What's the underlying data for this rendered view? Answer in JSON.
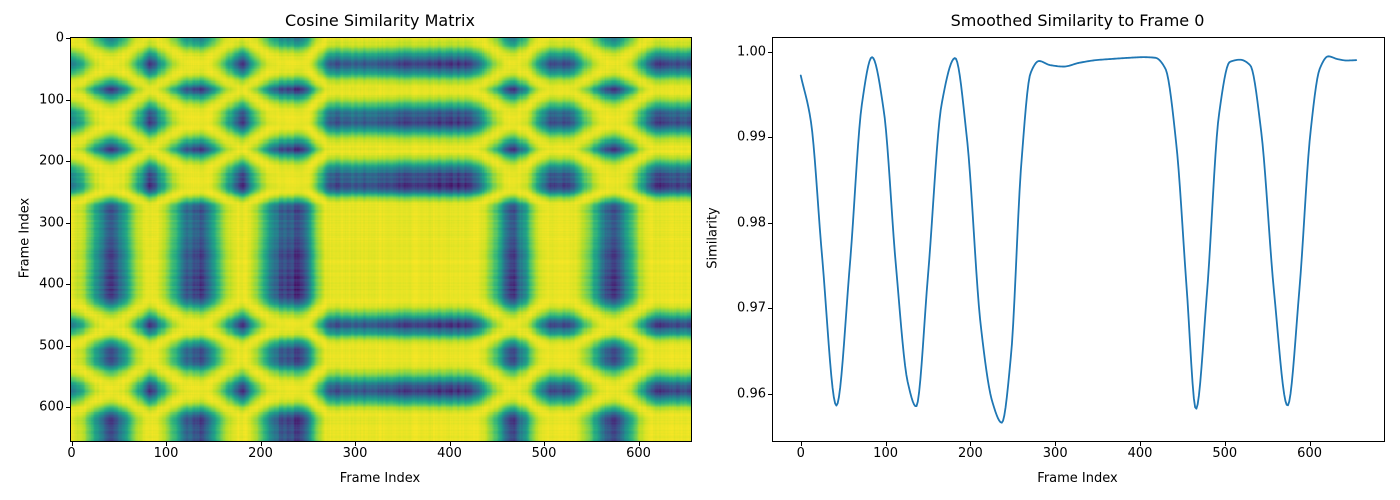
{
  "figure": {
    "background": "#ffffff"
  },
  "chart_data": [
    {
      "type": "heatmap",
      "title": "Cosine Similarity Matrix",
      "xlabel": "Frame Index",
      "ylabel": "Frame Index",
      "xticks": [
        0,
        100,
        200,
        300,
        400,
        500,
        600
      ],
      "yticks": [
        0,
        100,
        200,
        300,
        400,
        500,
        600
      ],
      "n_frames": 656,
      "colormap": "viridis",
      "viridis_stops": [
        "#440154",
        "#482475",
        "#414487",
        "#355f8d",
        "#2a788e",
        "#21918c",
        "#22a884",
        "#44bf70",
        "#7ad151",
        "#bddf26",
        "#fde725"
      ],
      "value_model": "similarity[i][j] = cos(theta_i - theta_j) - noise_i - noise_j; theta_t = amplitude - acos(clamp(similarity_curve(t), cos(2*amplitude), 1)); similarity_curve is the series of the second chart; colors autoscaled between matrix min and max",
      "amplitude_rad": 0.1476,
      "noise": {
        "seed": 42,
        "phase_jitter": 0.012,
        "value_jitter": 0.0012
      }
    },
    {
      "type": "line",
      "title": "Smoothed Similarity to Frame 0",
      "xlabel": "Frame Index",
      "ylabel": "Similarity",
      "xticks": [
        0,
        100,
        200,
        300,
        400,
        500,
        600
      ],
      "yticks": [
        0.96,
        0.97,
        0.98,
        0.99,
        1.0
      ],
      "ytick_labels": [
        "0.96",
        "0.97",
        "0.98",
        "0.99",
        "1.00"
      ],
      "xlim": [
        -32.75,
        687.75
      ],
      "ylim": [
        0.95446,
        1.00159
      ],
      "line_color": "#1f77b4",
      "line_width": 1.8,
      "grid": false,
      "legend": null,
      "x": [
        0,
        12,
        25,
        42,
        58,
        72,
        84,
        98,
        112,
        126,
        136,
        150,
        166,
        182,
        196,
        212,
        226,
        237,
        248,
        260,
        271,
        281,
        294,
        310,
        328,
        348,
        368,
        388,
        404,
        418,
        430,
        443,
        455,
        466,
        479,
        493,
        506,
        518,
        530,
        543,
        558,
        574,
        588,
        601,
        612,
        622,
        633,
        644,
        655
      ],
      "y": [
        0.9972,
        0.9918,
        0.9762,
        0.9586,
        0.9752,
        0.9938,
        0.99935,
        0.993,
        0.9752,
        0.9614,
        0.9585,
        0.9738,
        0.9938,
        0.99925,
        0.9898,
        0.9682,
        0.959,
        0.9566,
        0.9646,
        0.9868,
        0.9975,
        0.9989,
        0.99842,
        0.99825,
        0.99868,
        0.999,
        0.99915,
        0.99928,
        0.99935,
        0.99928,
        0.998,
        0.989,
        0.9724,
        0.9582,
        0.9718,
        0.9925,
        0.9988,
        0.99905,
        0.9984,
        0.9906,
        0.972,
        0.9586,
        0.9722,
        0.9905,
        0.998,
        0.99945,
        0.99912,
        0.99896,
        0.999
      ]
    }
  ]
}
